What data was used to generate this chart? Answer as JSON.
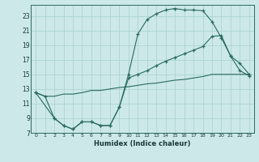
{
  "background_color": "#cce8e8",
  "grid_color": "#a8d0d0",
  "line_color": "#2a6b60",
  "xlabel": "Humidex (Indice chaleur)",
  "xlim": [
    -0.5,
    23.5
  ],
  "ylim": [
    7,
    24.5
  ],
  "xticks": [
    0,
    1,
    2,
    3,
    4,
    5,
    6,
    7,
    8,
    9,
    10,
    11,
    12,
    13,
    14,
    15,
    16,
    17,
    18,
    19,
    20,
    21,
    22,
    23
  ],
  "yticks": [
    7,
    9,
    11,
    13,
    15,
    17,
    19,
    21,
    23
  ],
  "line1_x": [
    0,
    1,
    2,
    3,
    4,
    5,
    6,
    7,
    8,
    9,
    10,
    11,
    12,
    13,
    14,
    15,
    16,
    17,
    18,
    19,
    20,
    21,
    22,
    23
  ],
  "line1_y": [
    12.5,
    12.0,
    9.0,
    8.0,
    7.5,
    8.5,
    8.5,
    8.0,
    8.0,
    10.5,
    15.0,
    20.5,
    22.5,
    23.3,
    23.8,
    24.0,
    23.8,
    23.8,
    23.7,
    22.2,
    20.0,
    17.5,
    15.5,
    14.8
  ],
  "line2_x": [
    0,
    2,
    3,
    4,
    5,
    6,
    7,
    8,
    9,
    10,
    11,
    12,
    13,
    14,
    15,
    16,
    17,
    18,
    19,
    20,
    21,
    22,
    23
  ],
  "line2_y": [
    12.5,
    9.0,
    8.0,
    7.5,
    8.5,
    8.5,
    8.0,
    8.0,
    10.5,
    14.5,
    15.0,
    15.5,
    16.2,
    16.8,
    17.3,
    17.8,
    18.3,
    18.8,
    20.2,
    20.3,
    17.5,
    16.5,
    15.0
  ],
  "line3_x": [
    0,
    1,
    2,
    3,
    4,
    5,
    6,
    7,
    8,
    9,
    10,
    11,
    12,
    13,
    14,
    15,
    16,
    17,
    18,
    19,
    20,
    21,
    22,
    23
  ],
  "line3_y": [
    12.5,
    12.0,
    12.0,
    12.3,
    12.3,
    12.5,
    12.8,
    12.8,
    13.0,
    13.2,
    13.3,
    13.5,
    13.7,
    13.8,
    14.0,
    14.2,
    14.3,
    14.5,
    14.7,
    15.0,
    15.0,
    15.0,
    15.0,
    15.0
  ]
}
